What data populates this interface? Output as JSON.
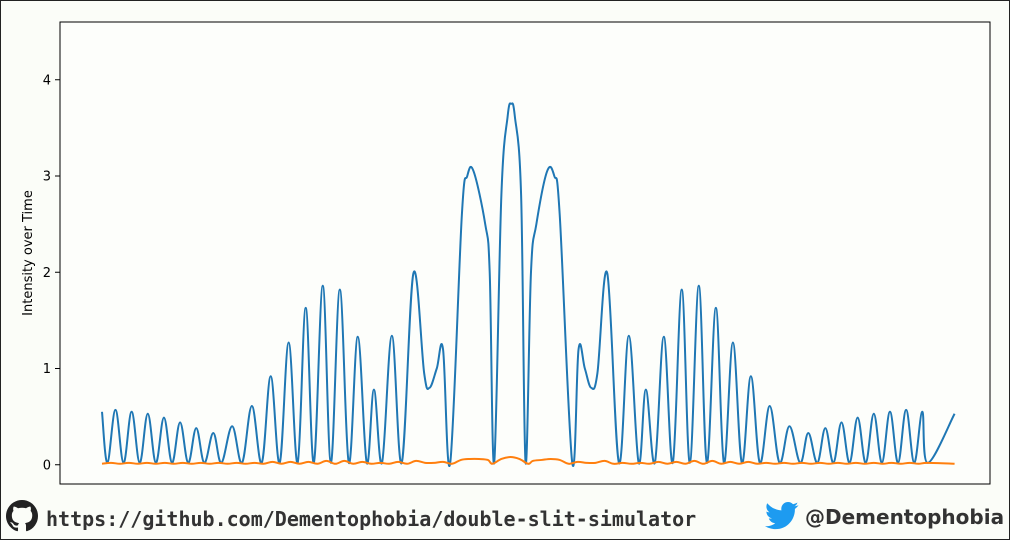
{
  "chart_data": {
    "type": "line",
    "title": "",
    "xlabel": "",
    "ylabel": "Intensity over Time",
    "xlim": [
      -0.5,
      0.5
    ],
    "ylim": [
      -0.2,
      4.6
    ],
    "yticks": [
      0,
      1,
      2,
      3,
      4
    ],
    "grid": false,
    "series": [
      {
        "color": "#1f77b4",
        "points": [
          [
            -0.5,
            0.55
          ],
          [
            -0.494,
            0.02
          ],
          [
            -0.485,
            0.57
          ],
          [
            -0.476,
            0.02
          ],
          [
            -0.467,
            0.55
          ],
          [
            -0.458,
            0.02
          ],
          [
            -0.449,
            0.53
          ],
          [
            -0.44,
            0.02
          ],
          [
            -0.431,
            0.49
          ],
          [
            -0.422,
            0.02
          ],
          [
            -0.413,
            0.44
          ],
          [
            -0.404,
            0.02
          ],
          [
            -0.395,
            0.38
          ],
          [
            -0.386,
            0.02
          ],
          [
            -0.376,
            0.33
          ],
          [
            -0.367,
            0.02
          ],
          [
            -0.355,
            0.4
          ],
          [
            -0.344,
            0.02
          ],
          [
            -0.333,
            0.61
          ],
          [
            -0.322,
            0.02
          ],
          [
            -0.312,
            0.92
          ],
          [
            -0.302,
            0.02
          ],
          [
            -0.292,
            1.27
          ],
          [
            -0.282,
            0.02
          ],
          [
            -0.273,
            1.63
          ],
          [
            -0.264,
            0.02
          ],
          [
            -0.254,
            1.86
          ],
          [
            -0.245,
            0.02
          ],
          [
            -0.235,
            1.82
          ],
          [
            -0.225,
            0.02
          ],
          [
            -0.215,
            1.33
          ],
          [
            -0.205,
            0.02
          ],
          [
            -0.197,
            0.78
          ],
          [
            -0.188,
            0.02
          ],
          [
            -0.177,
            1.34
          ],
          [
            -0.166,
            0.02
          ],
          [
            -0.153,
            1.99
          ],
          [
            -0.141,
            0.95
          ],
          [
            -0.135,
            0.8
          ],
          [
            -0.127,
            1.0
          ],
          [
            -0.12,
            1.2
          ],
          [
            -0.112,
            0.02
          ],
          [
            -0.099,
            2.6
          ],
          [
            -0.093,
            3.0
          ],
          [
            -0.086,
            3.05
          ],
          [
            -0.073,
            2.5
          ],
          [
            -0.068,
            2.0
          ],
          [
            -0.063,
            0.02
          ],
          [
            -0.055,
            2.8
          ],
          [
            -0.048,
            3.62
          ],
          [
            -0.044,
            3.75
          ],
          [
            -0.04,
            3.62
          ],
          [
            -0.033,
            2.8
          ],
          [
            -0.028,
            0.02
          ],
          [
            -0.022,
            2.0
          ],
          [
            -0.016,
            2.5
          ],
          [
            -0.004,
            3.05
          ],
          [
            0.004,
            3.0
          ],
          [
            0.01,
            2.6
          ],
          [
            0.024,
            0.02
          ],
          [
            0.031,
            1.2
          ],
          [
            0.038,
            1.0
          ],
          [
            0.045,
            0.8
          ],
          [
            0.052,
            0.95
          ],
          [
            0.063,
            1.99
          ],
          [
            0.076,
            0.02
          ],
          [
            0.087,
            1.34
          ],
          [
            0.098,
            0.02
          ],
          [
            0.106,
            0.78
          ],
          [
            0.116,
            0.02
          ],
          [
            0.126,
            1.33
          ],
          [
            0.136,
            0.02
          ],
          [
            0.146,
            1.82
          ],
          [
            0.155,
            0.02
          ],
          [
            0.165,
            1.86
          ],
          [
            0.174,
            0.02
          ],
          [
            0.184,
            1.63
          ],
          [
            0.193,
            0.02
          ],
          [
            0.203,
            1.27
          ],
          [
            0.213,
            0.02
          ],
          [
            0.223,
            0.92
          ],
          [
            0.233,
            0.02
          ],
          [
            0.244,
            0.61
          ],
          [
            0.255,
            0.02
          ],
          [
            0.266,
            0.4
          ],
          [
            0.278,
            0.02
          ],
          [
            0.287,
            0.33
          ],
          [
            0.297,
            0.02
          ],
          [
            0.306,
            0.38
          ],
          [
            0.315,
            0.02
          ],
          [
            0.324,
            0.44
          ],
          [
            0.333,
            0.02
          ],
          [
            0.342,
            0.49
          ],
          [
            0.351,
            0.02
          ],
          [
            0.36,
            0.53
          ],
          [
            0.369,
            0.02
          ],
          [
            0.378,
            0.55
          ],
          [
            0.387,
            0.02
          ],
          [
            0.396,
            0.57
          ],
          [
            0.405,
            0.02
          ],
          [
            0.414,
            0.55
          ],
          [
            0.42,
            0.02
          ],
          [
            0.45,
            0.53
          ]
        ]
      },
      {
        "color": "#ff7f0e",
        "points": [
          [
            -0.5,
            0.01
          ],
          [
            -0.49,
            0.02
          ],
          [
            -0.48,
            0.01
          ],
          [
            -0.47,
            0.02
          ],
          [
            -0.46,
            0.01
          ],
          [
            -0.45,
            0.02
          ],
          [
            -0.44,
            0.01
          ],
          [
            -0.43,
            0.02
          ],
          [
            -0.42,
            0.01
          ],
          [
            -0.41,
            0.02
          ],
          [
            -0.4,
            0.01
          ],
          [
            -0.39,
            0.02
          ],
          [
            -0.38,
            0.01
          ],
          [
            -0.37,
            0.02
          ],
          [
            -0.36,
            0.01
          ],
          [
            -0.35,
            0.02
          ],
          [
            -0.34,
            0.01
          ],
          [
            -0.33,
            0.02
          ],
          [
            -0.32,
            0.01
          ],
          [
            -0.31,
            0.03
          ],
          [
            -0.3,
            0.01
          ],
          [
            -0.29,
            0.03
          ],
          [
            -0.28,
            0.01
          ],
          [
            -0.27,
            0.03
          ],
          [
            -0.26,
            0.01
          ],
          [
            -0.25,
            0.04
          ],
          [
            -0.24,
            0.01
          ],
          [
            -0.23,
            0.04
          ],
          [
            -0.22,
            0.01
          ],
          [
            -0.21,
            0.03
          ],
          [
            -0.2,
            0.01
          ],
          [
            -0.19,
            0.02
          ],
          [
            -0.18,
            0.01
          ],
          [
            -0.17,
            0.03
          ],
          [
            -0.16,
            0.01
          ],
          [
            -0.15,
            0.04
          ],
          [
            -0.14,
            0.02
          ],
          [
            -0.13,
            0.02
          ],
          [
            -0.12,
            0.03
          ],
          [
            -0.11,
            0.01
          ],
          [
            -0.1,
            0.05
          ],
          [
            -0.09,
            0.06
          ],
          [
            -0.08,
            0.06
          ],
          [
            -0.07,
            0.05
          ],
          [
            -0.065,
            0.01
          ],
          [
            -0.055,
            0.06
          ],
          [
            -0.045,
            0.08
          ],
          [
            -0.035,
            0.06
          ],
          [
            -0.025,
            0.01
          ],
          [
            -0.02,
            0.04
          ],
          [
            -0.01,
            0.05
          ],
          [
            0.0,
            0.06
          ],
          [
            0.01,
            0.05
          ],
          [
            0.02,
            0.01
          ],
          [
            0.03,
            0.03
          ],
          [
            0.04,
            0.02
          ],
          [
            0.05,
            0.02
          ],
          [
            0.06,
            0.04
          ],
          [
            0.07,
            0.01
          ],
          [
            0.08,
            0.02
          ],
          [
            0.09,
            0.01
          ],
          [
            0.1,
            0.02
          ],
          [
            0.11,
            0.01
          ],
          [
            0.12,
            0.03
          ],
          [
            0.13,
            0.01
          ],
          [
            0.14,
            0.03
          ],
          [
            0.15,
            0.01
          ],
          [
            0.16,
            0.04
          ],
          [
            0.17,
            0.01
          ],
          [
            0.18,
            0.04
          ],
          [
            0.19,
            0.01
          ],
          [
            0.2,
            0.03
          ],
          [
            0.21,
            0.01
          ],
          [
            0.22,
            0.03
          ],
          [
            0.23,
            0.01
          ],
          [
            0.24,
            0.02
          ],
          [
            0.25,
            0.01
          ],
          [
            0.26,
            0.02
          ],
          [
            0.27,
            0.01
          ],
          [
            0.28,
            0.02
          ],
          [
            0.29,
            0.01
          ],
          [
            0.3,
            0.02
          ],
          [
            0.31,
            0.01
          ],
          [
            0.32,
            0.02
          ],
          [
            0.33,
            0.01
          ],
          [
            0.34,
            0.02
          ],
          [
            0.35,
            0.01
          ],
          [
            0.36,
            0.02
          ],
          [
            0.37,
            0.01
          ],
          [
            0.38,
            0.02
          ],
          [
            0.39,
            0.01
          ],
          [
            0.4,
            0.02
          ],
          [
            0.41,
            0.01
          ],
          [
            0.42,
            0.02
          ],
          [
            0.45,
            0.01
          ]
        ]
      }
    ]
  },
  "footer": {
    "link_text": "https://github.com/Dementophobia/double-slit-simulator",
    "handle_text": "@Dementophobia",
    "icons": [
      "github-icon",
      "twitter-icon"
    ]
  }
}
